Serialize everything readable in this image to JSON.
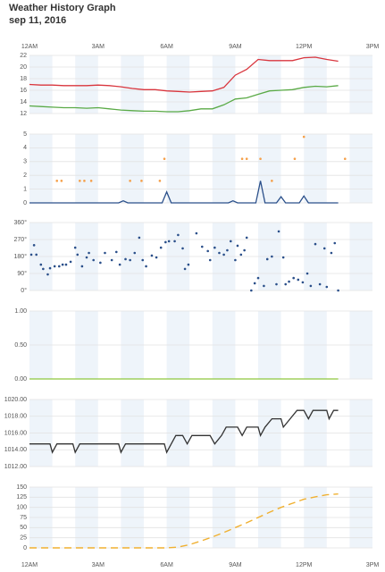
{
  "title": "Weather History Graph",
  "subtitle": "sep 11, 2016",
  "chart_data": [
    {
      "type": "line",
      "xlim": [
        0,
        15
      ],
      "xticks": [
        {
          "value": 0,
          "label": "12AM"
        },
        {
          "value": 3,
          "label": "3AM"
        },
        {
          "value": 6,
          "label": "6AM"
        },
        {
          "value": 9,
          "label": "9AM"
        },
        {
          "value": 12,
          "label": "12PM"
        },
        {
          "value": 15,
          "label": "3PM"
        }
      ],
      "ylim": [
        12,
        22
      ],
      "yticks": [
        12,
        14,
        16,
        18,
        20,
        22
      ],
      "grid": true,
      "series": [
        {
          "type": "line",
          "color": "#d9363e",
          "x": [
            0,
            0.5,
            1,
            1.5,
            2,
            2.5,
            3,
            3.5,
            4,
            4.5,
            5,
            5.5,
            6,
            6.5,
            7,
            7.5,
            8,
            8.5,
            9,
            9.5,
            10,
            10.5,
            11,
            11.5,
            12,
            12.5,
            13,
            13.5
          ],
          "values": [
            17.0,
            16.9,
            16.9,
            16.8,
            16.8,
            16.8,
            16.9,
            16.8,
            16.6,
            16.3,
            16.1,
            16.1,
            15.9,
            15.8,
            15.7,
            15.8,
            15.9,
            16.5,
            18.6,
            19.6,
            21.3,
            21.1,
            21.1,
            21.1,
            21.6,
            21.7,
            21.3,
            21.0
          ]
        },
        {
          "type": "line",
          "color": "#5aaa46",
          "x": [
            0,
            0.5,
            1,
            1.5,
            2,
            2.5,
            3,
            3.5,
            4,
            4.5,
            5,
            5.5,
            6,
            6.5,
            7,
            7.5,
            8,
            8.5,
            9,
            9.5,
            10,
            10.5,
            11,
            11.5,
            12,
            12.5,
            13,
            13.5
          ],
          "values": [
            13.3,
            13.2,
            13.1,
            13.0,
            13.0,
            12.9,
            13.0,
            12.8,
            12.6,
            12.5,
            12.4,
            12.4,
            12.3,
            12.3,
            12.5,
            12.8,
            12.8,
            13.5,
            14.5,
            14.7,
            15.3,
            15.9,
            16.0,
            16.1,
            16.5,
            16.7,
            16.6,
            16.8
          ]
        }
      ]
    },
    {
      "type": "line",
      "xlim": [
        0,
        15
      ],
      "xticks": [
        0,
        3,
        6,
        9,
        12,
        15
      ],
      "ylim": [
        0,
        5
      ],
      "yticks": [
        0,
        1,
        2,
        3,
        4,
        5
      ],
      "grid": true,
      "series": [
        {
          "type": "line",
          "color": "#2a4f8a",
          "x": [
            0,
            3.9,
            4.1,
            4.3,
            5.8,
            6,
            6.2,
            8.7,
            8.9,
            9.1,
            9.9,
            10.1,
            10.3,
            10.8,
            11,
            11.2,
            11.8,
            12,
            12.2,
            13.5
          ],
          "values": [
            0,
            0,
            0.15,
            0,
            0,
            0.8,
            0,
            0,
            0.15,
            0,
            0,
            1.6,
            0,
            0,
            0.45,
            0,
            0,
            0.5,
            0,
            0
          ]
        },
        {
          "type": "scatter",
          "color": "#f5a04a",
          "x": [
            1.2,
            1.4,
            2.2,
            2.4,
            2.7,
            4.4,
            4.9,
            5.7,
            5.9,
            9.3,
            9.5,
            10.1,
            10.6,
            11.6,
            12.0,
            13.8
          ],
          "values": [
            1.6,
            1.6,
            1.6,
            1.6,
            1.6,
            1.6,
            1.6,
            1.6,
            3.2,
            3.2,
            3.2,
            3.2,
            1.6,
            3.2,
            4.8,
            3.2
          ]
        }
      ]
    },
    {
      "type": "scatter",
      "xlim": [
        0,
        15
      ],
      "xticks": [
        0,
        3,
        6,
        9,
        12,
        15
      ],
      "ylim": [
        0,
        360
      ],
      "yticks": [
        {
          "value": 0,
          "label": "0°"
        },
        {
          "value": 90,
          "label": "90°"
        },
        {
          "value": 180,
          "label": "180°"
        },
        {
          "value": 270,
          "label": "270°"
        },
        {
          "value": 360,
          "label": "360°"
        }
      ],
      "grid": true,
      "series": [
        {
          "type": "scatter",
          "color": "#2a4f8a",
          "x": [
            0.08,
            0.2,
            0.3,
            0.5,
            0.6,
            0.8,
            0.9,
            1.1,
            1.3,
            1.45,
            1.6,
            1.8,
            2.0,
            2.1,
            2.3,
            2.5,
            2.6,
            2.8,
            3.1,
            3.3,
            3.6,
            3.8,
            3.95,
            4.2,
            4.4,
            4.6,
            4.8,
            4.95,
            5.1,
            5.35,
            5.55,
            5.75,
            5.95,
            6.1,
            6.35,
            6.5,
            6.7,
            6.8,
            6.95,
            7.3,
            7.55,
            7.8,
            7.9,
            8.1,
            8.3,
            8.5,
            8.65,
            8.8,
            9.0,
            9.1,
            9.25,
            9.4,
            9.5,
            9.7,
            9.85,
            10.0,
            10.25,
            10.4,
            10.6,
            10.8,
            10.9,
            11.1,
            11.2,
            11.35,
            11.55,
            11.75,
            11.95,
            12.15,
            12.3,
            12.5,
            12.7,
            12.9,
            13.0,
            13.2,
            13.35,
            13.5
          ],
          "values": [
            190,
            240,
            190,
            137,
            114,
            85,
            118,
            128,
            128,
            137,
            137,
            152,
            227,
            190,
            128,
            175,
            199,
            161,
            147,
            199,
            161,
            204,
            137,
            166,
            161,
            199,
            280,
            161,
            128,
            185,
            175,
            227,
            256,
            261,
            261,
            294,
            223,
            114,
            137,
            303,
            232,
            209,
            161,
            227,
            199,
            190,
            213,
            261,
            161,
            237,
            190,
            213,
            280,
            0,
            38,
            66,
            24,
            166,
            180,
            33,
            313,
            175,
            33,
            47,
            66,
            57,
            43,
            90,
            24,
            246,
            33,
            223,
            19,
            199,
            251,
            0
          ]
        }
      ]
    },
    {
      "type": "line",
      "xlim": [
        0,
        15
      ],
      "xticks": [
        0,
        3,
        6,
        9,
        12,
        15
      ],
      "ylim": [
        0,
        1
      ],
      "yticks": [
        {
          "value": 0,
          "label": "0.00"
        },
        {
          "value": 0.5,
          "label": "0.50"
        },
        {
          "value": 1,
          "label": "1.00"
        }
      ],
      "grid": true,
      "series": [
        {
          "type": "line",
          "color": "#8dc63f",
          "x": [
            0,
            13.5
          ],
          "values": [
            0,
            0
          ]
        }
      ]
    },
    {
      "type": "line",
      "xlim": [
        0,
        15
      ],
      "xticks": [
        0,
        3,
        6,
        9,
        12,
        15
      ],
      "ylim": [
        1012,
        1020
      ],
      "yticks": [
        {
          "value": 1012,
          "label": "1012.00"
        },
        {
          "value": 1014,
          "label": "1014.00"
        },
        {
          "value": 1016,
          "label": "1016.00"
        },
        {
          "value": 1018,
          "label": "1018.00"
        },
        {
          "value": 1020,
          "label": "1020.00"
        }
      ],
      "grid": true,
      "series": [
        {
          "type": "line",
          "color": "#333333",
          "x": [
            0,
            0.9,
            1.0,
            1.2,
            1.9,
            2.0,
            2.2,
            3.9,
            4.0,
            4.2,
            5.9,
            6.0,
            6.2,
            6.4,
            6.7,
            6.9,
            7.1,
            7.9,
            8.1,
            8.4,
            8.6,
            9.1,
            9.3,
            9.5,
            10.0,
            10.1,
            10.3,
            10.6,
            11.0,
            11.1,
            11.4,
            11.7,
            12.0,
            12.2,
            12.4,
            13.0,
            13.1,
            13.3,
            13.5
          ],
          "values": [
            1014.7,
            1014.7,
            1013.7,
            1014.7,
            1014.7,
            1013.7,
            1014.7,
            1014.7,
            1013.7,
            1014.7,
            1014.7,
            1013.7,
            1014.7,
            1015.7,
            1015.7,
            1014.7,
            1015.7,
            1015.7,
            1014.7,
            1015.7,
            1016.7,
            1016.7,
            1015.7,
            1016.7,
            1016.7,
            1015.7,
            1016.7,
            1017.7,
            1017.7,
            1016.7,
            1017.7,
            1018.7,
            1018.7,
            1017.7,
            1018.7,
            1018.7,
            1017.7,
            1018.7,
            1018.7
          ]
        }
      ]
    },
    {
      "type": "line",
      "xlim": [
        0,
        15
      ],
      "xticks": [
        {
          "value": 0,
          "label": "12AM"
        },
        {
          "value": 3,
          "label": "3AM"
        },
        {
          "value": 6,
          "label": "6AM"
        },
        {
          "value": 9,
          "label": "9AM"
        },
        {
          "value": 12,
          "label": "12PM"
        },
        {
          "value": 15,
          "label": "3PM"
        }
      ],
      "ylim": [
        0,
        150
      ],
      "yticks": [
        0,
        25,
        50,
        75,
        100,
        125,
        150
      ],
      "grid": true,
      "series": [
        {
          "type": "line",
          "dash": true,
          "color": "#f0b030",
          "x": [
            0,
            1,
            2,
            3,
            4,
            5,
            6,
            6.5,
            7,
            7.5,
            8,
            8.5,
            9,
            9.5,
            10,
            10.5,
            11,
            11.5,
            12,
            12.5,
            13,
            13.5
          ],
          "values": [
            0,
            0,
            0,
            0,
            0,
            0,
            0,
            2,
            8,
            17,
            27,
            38,
            50,
            62,
            75,
            88,
            100,
            110,
            120,
            126,
            131,
            133
          ]
        }
      ]
    }
  ]
}
